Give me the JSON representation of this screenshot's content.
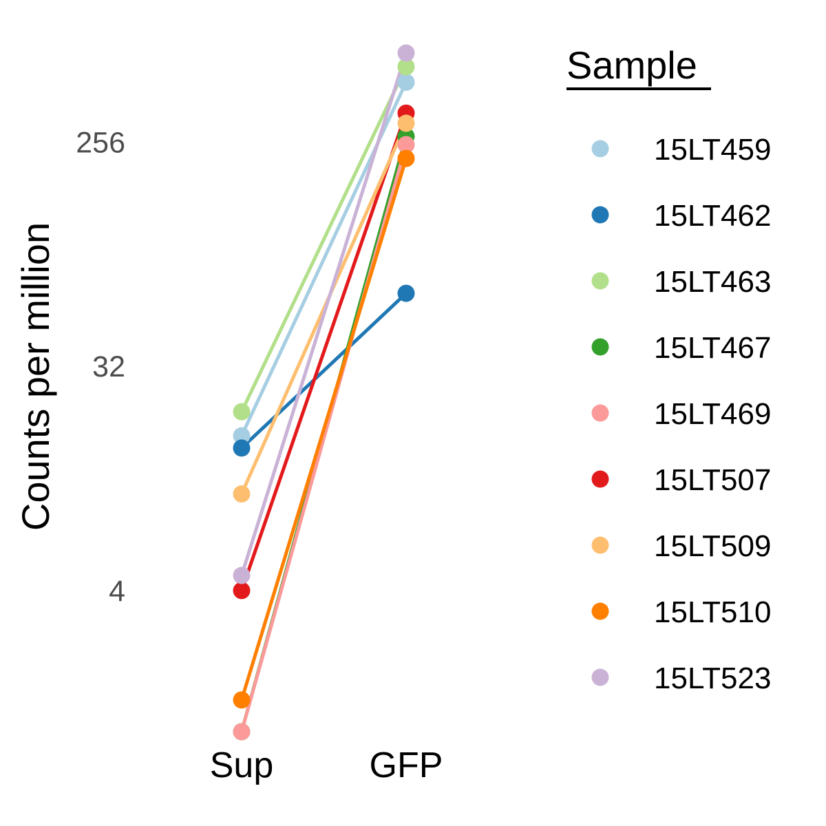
{
  "chart_data": {
    "type": "line",
    "title": "",
    "xlabel": "",
    "ylabel": "Counts per million",
    "y_scale": "log2",
    "ylim": [
      1.08,
      585
    ],
    "y_ticks": [
      4,
      32,
      256
    ],
    "y_tick_labels": [
      "4",
      "32",
      "256"
    ],
    "categories": [
      "Sup",
      "GFP"
    ],
    "grid": false,
    "legend": {
      "title": "Sample",
      "position": "right"
    },
    "series": [
      {
        "name": "15LT459",
        "color": "#a6cee3",
        "values": [
          16.8,
          446
        ]
      },
      {
        "name": "15LT462",
        "color": "#1f78b4",
        "values": [
          15.0,
          63
        ]
      },
      {
        "name": "15LT463",
        "color": "#b2df8a",
        "values": [
          21.0,
          515
        ]
      },
      {
        "name": "15LT467",
        "color": "#33a02c",
        "values": [
          1.08,
          270
        ]
      },
      {
        "name": "15LT469",
        "color": "#fb9a99",
        "values": [
          1.08,
          250
        ]
      },
      {
        "name": "15LT507",
        "color": "#e31a1c",
        "values": [
          4.0,
          335
        ]
      },
      {
        "name": "15LT509",
        "color": "#fdbf6f",
        "values": [
          9.8,
          305
        ]
      },
      {
        "name": "15LT510",
        "color": "#ff7f00",
        "values": [
          1.45,
          220
        ]
      },
      {
        "name": "15LT523",
        "color": "#cab2d6",
        "values": [
          4.6,
          585
        ]
      }
    ]
  }
}
